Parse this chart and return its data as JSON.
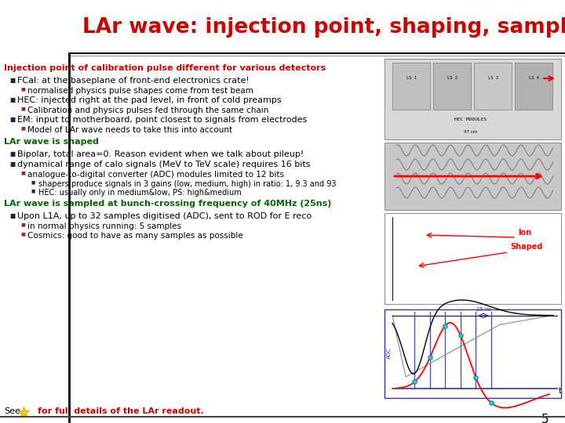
{
  "title": "LAr wave: injection point, shaping, sampling",
  "title_color": "#cc0000",
  "bg_color": "#ffffff",
  "slide_number": "5",
  "red_header": "Injection point of calibration pulse different for various detectors",
  "green_header1": "LAr wave is shaped",
  "green_header2": "LAr wave is sampled at bunch-crossing frequency of 40MHz (25ns)",
  "footer_text": "for full details of the LAr readout.",
  "footer_color": "#cc0000",
  "text_blocks": [
    {
      "level": 0,
      "color": "#cc0000",
      "bold": true,
      "text": "Injection point of calibration pulse different for various detectors"
    },
    {
      "level": 1,
      "color": "#000000",
      "bold": false,
      "text": "FCal: at the baseplane of front-end electronics crate!"
    },
    {
      "level": 2,
      "color": "#000000",
      "bold": false,
      "text": "normalised physics pulse shapes come from test beam"
    },
    {
      "level": 1,
      "color": "#000000",
      "bold": false,
      "text": "HEC: injected right at the pad level, in front of cold preamps"
    },
    {
      "level": 2,
      "color": "#000000",
      "bold": false,
      "text": "Calibration and physics pulses fed through the same chain"
    },
    {
      "level": 1,
      "color": "#000000",
      "bold": false,
      "text": "EM: input to motherboard, point closest to signals from electrodes"
    },
    {
      "level": 2,
      "color": "#000000",
      "bold": false,
      "text": "Model of LAr wave needs to take this into account"
    },
    {
      "level": 0,
      "color": "#006600",
      "bold": true,
      "text": "LAr wave is shaped"
    },
    {
      "level": 1,
      "color": "#000000",
      "bold": false,
      "text": "Bipolar, total area=0. Reason evident when we talk about pileup!"
    },
    {
      "level": 1,
      "color": "#000000",
      "bold": false,
      "text": "dynamical range of calo signals (MeV to TeV scale) requires 16 bits"
    },
    {
      "level": 2,
      "color": "#000000",
      "bold": false,
      "text": "analogue-to-digital converter (ADC) modules limited to 12 bits"
    },
    {
      "level": 3,
      "color": "#000000",
      "bold": false,
      "text": "shapers produce signals in 3 gains (low, medium, high) in ratio: 1, 9.3 and 93"
    },
    {
      "level": 3,
      "color": "#000000",
      "bold": false,
      "text": "HEC: usually only in medium&low, PS: high&medium"
    },
    {
      "level": 0,
      "color": "#006600",
      "bold": true,
      "text": "LAr wave is sampled at bunch-crossing frequency of 40MHz (25ns)"
    },
    {
      "level": 1,
      "color": "#000000",
      "bold": false,
      "text": "Upon L1A, up to 32 samples digitised (ADC), sent to ROD for E reco"
    },
    {
      "level": 2,
      "color": "#000000",
      "bold": false,
      "text": "in normal physics running: 5 samples"
    },
    {
      "level": 2,
      "color": "#000000",
      "bold": false,
      "text": "Cosmics: good to have as many samples as possible"
    }
  ]
}
